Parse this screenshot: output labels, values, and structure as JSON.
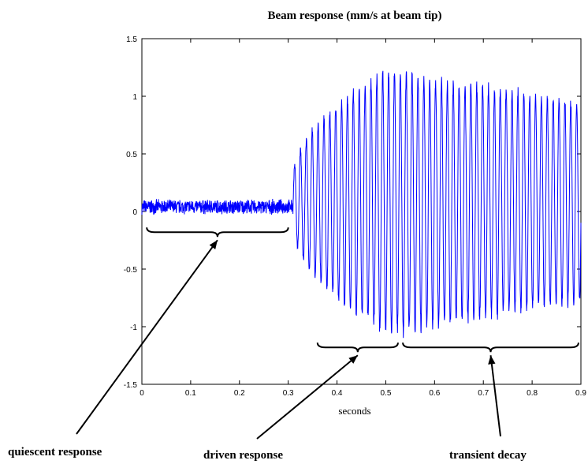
{
  "chart_data": {
    "type": "line",
    "title": "Beam response (mm/s at beam tip)",
    "xlabel": "seconds",
    "ylabel": "",
    "xlim": [
      0,
      0.9
    ],
    "ylim": [
      -1.5,
      1.5
    ],
    "x_ticks": [
      "0",
      "0.1",
      "0.2",
      "0.3",
      "0.4",
      "0.5",
      "0.6",
      "0.7",
      "0.8",
      "0.9"
    ],
    "y_ticks": [
      "1.5",
      "1",
      "0.5",
      "0",
      "-0.5",
      "-1",
      "-1.5"
    ],
    "grid": false,
    "series": [
      {
        "color": "#0000ff",
        "segments": [
          {
            "t_start": 0.0,
            "t_end": 0.31,
            "center": 0.04,
            "amplitude": 0.07
          },
          {
            "t_start": 0.31,
            "t_end": 0.52,
            "envelope_start": 0.2,
            "envelope_end": 1.2
          },
          {
            "t_start": 0.52,
            "t_end": 0.9,
            "envelope_start": 1.15,
            "envelope_end": 0.88
          }
        ]
      }
    ],
    "annotations": [
      {
        "text": "quiescent response",
        "bracket_x": [
          0.01,
          0.3
        ],
        "bracket_y": -0.18
      },
      {
        "text": "driven response",
        "bracket_x": [
          0.36,
          0.525
        ],
        "bracket_y": -1.18
      },
      {
        "text": "transient decay",
        "bracket_x": [
          0.535,
          0.895
        ],
        "bracket_y": -1.18
      }
    ]
  }
}
